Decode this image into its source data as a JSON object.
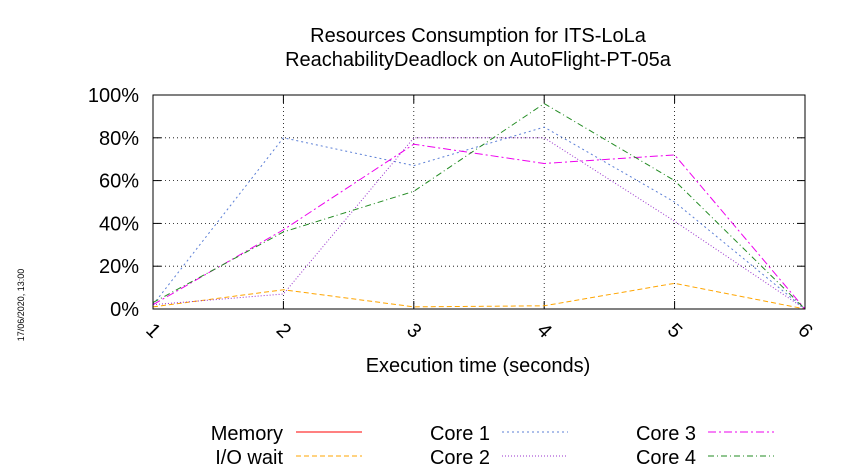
{
  "chart_data": {
    "type": "line",
    "title_lines": [
      "Resources Consumption for ITS-LoLa",
      "ReachabilityDeadlock on AutoFlight-PT-05a"
    ],
    "xlabel": "Execution time (seconds)",
    "ylabel": "",
    "x": [
      1,
      2,
      3,
      4,
      5,
      6
    ],
    "x_tick_labels": [
      "1",
      "2",
      "3",
      "4",
      "5",
      "6"
    ],
    "xlim": [
      1,
      6
    ],
    "ylim": [
      0,
      100
    ],
    "y_ticks": [
      0,
      20,
      40,
      60,
      80,
      100
    ],
    "y_tick_labels": [
      "0%",
      "20%",
      "40%",
      "60%",
      "80%",
      "100%"
    ],
    "grid": true,
    "legend_position": "bottom",
    "timestamp": "17/06/2020, 13:00",
    "series": [
      {
        "name": "Memory",
        "color": "#ff0000",
        "dash": "",
        "values": [
          null,
          null,
          null,
          null,
          null,
          null
        ]
      },
      {
        "name": "I/O wait",
        "color": "#ffa500",
        "dash": "5,3",
        "values": [
          1,
          9,
          1,
          1.5,
          12,
          0
        ]
      },
      {
        "name": "Core 1",
        "color": "#5b7fd6",
        "dash": "2,3",
        "values": [
          2,
          80,
          67,
          85,
          50,
          0
        ]
      },
      {
        "name": "Core 2",
        "color": "#9932cc",
        "dash": "1,2",
        "values": [
          2,
          7,
          80,
          80,
          41,
          0
        ]
      },
      {
        "name": "Core 3",
        "color": "#ee00ee",
        "dash": "8,3,2,3",
        "values": [
          2,
          37,
          77,
          68,
          72,
          0
        ]
      },
      {
        "name": "Core 4",
        "color": "#228b22",
        "dash": "6,3,1,3",
        "values": [
          3,
          36,
          55,
          96,
          60,
          0
        ]
      }
    ]
  }
}
